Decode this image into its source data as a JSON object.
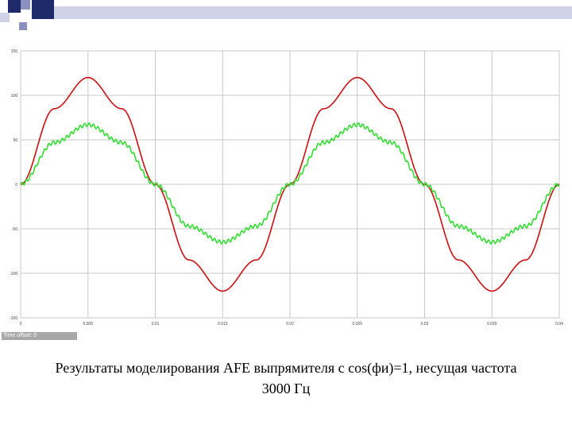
{
  "slide": {
    "caption_line1": "Результаты моделирования AFE выпрямителя с cos(фи)=1, несущая частота",
    "caption_line2": "3000 Гц",
    "time_offset_label": "Time offset:",
    "time_offset_value": "0"
  },
  "colors": {
    "banner_dark": "#1f2a6b",
    "banner_mid": "#8a90c0",
    "banner_light": "#d0d3e8",
    "series_red": "#cc1010",
    "series_green": "#33dd33",
    "grid": "#c8c8c8"
  },
  "chart_data": {
    "type": "line",
    "title": "",
    "xlabel": "",
    "ylabel": "",
    "xlim": [
      0,
      0.04
    ],
    "ylim": [
      -150,
      150
    ],
    "xticks": [
      0,
      0.005,
      0.01,
      0.015,
      0.02,
      0.025,
      0.03,
      0.035,
      0.04
    ],
    "xtick_labels": [
      "0",
      "0.005",
      "0.01",
      "0.015",
      "0.02",
      "0.025",
      "0.03",
      "0.035",
      "0.04"
    ],
    "yticks": [
      150,
      100,
      50,
      0,
      -50,
      -100,
      -150
    ],
    "ytick_labels": [
      "150",
      "100",
      "50",
      "0",
      "-50",
      "-100",
      "-150"
    ],
    "grid": true,
    "series": [
      {
        "color": "#cc1010",
        "x": [
          0,
          0.0025,
          0.005,
          0.0075,
          0.01,
          0.0125,
          0.015,
          0.0175,
          0.02,
          0.0225,
          0.025,
          0.0275,
          0.03,
          0.0325,
          0.035,
          0.0375,
          0.04
        ],
        "values": [
          0,
          85,
          120,
          85,
          0,
          -85,
          -120,
          -85,
          0,
          85,
          120,
          85,
          0,
          -85,
          -120,
          -85,
          0
        ]
      },
      {
        "color": "#33dd33",
        "x": [
          0,
          0.0025,
          0.005,
          0.0075,
          0.01,
          0.0125,
          0.015,
          0.0175,
          0.02,
          0.0225,
          0.025,
          0.0275,
          0.03,
          0.0325,
          0.035,
          0.0375,
          0.04
        ],
        "values": [
          0,
          47,
          67,
          47,
          0,
          -47,
          -65,
          -47,
          0,
          47,
          67,
          47,
          0,
          -47,
          -65,
          -47,
          0
        ],
        "ripple_hz": 3000,
        "ripple_amplitude": 2
      }
    ]
  }
}
